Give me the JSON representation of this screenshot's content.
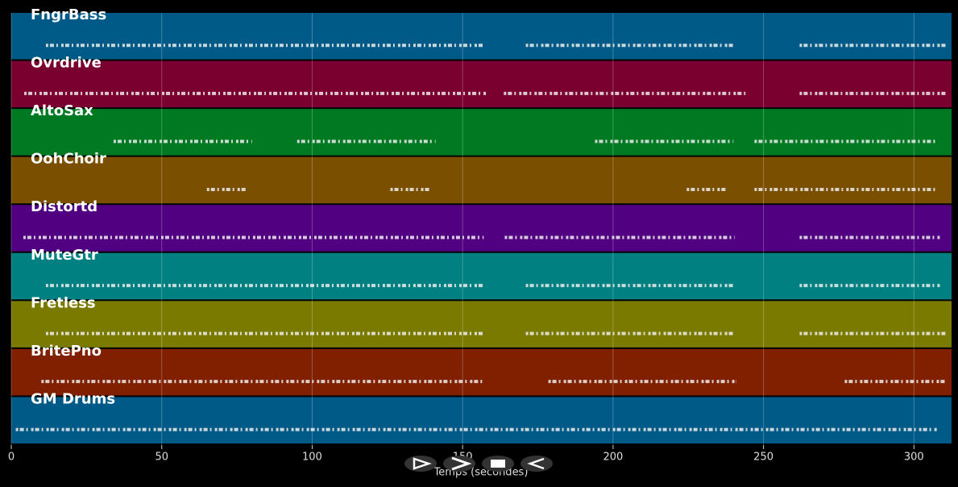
{
  "chart_data": {
    "type": "pianoroll",
    "x_label": "Temps (secondes)",
    "xlim": [
      0,
      312.5
    ],
    "xticks": [
      0,
      50,
      100,
      150,
      200,
      250,
      300
    ],
    "grid": true,
    "tracks": [
      {
        "name": "FngrBass",
        "color": "#005a87",
        "segments": [
          [
            11.5,
            157
          ],
          [
            171,
            240.5
          ],
          [
            262,
            310.5
          ]
        ]
      },
      {
        "name": "Ovrdrive",
        "color": "#7a0030",
        "segments": [
          [
            4.3,
            158
          ],
          [
            163.7,
            244
          ],
          [
            262,
            310.5
          ]
        ]
      },
      {
        "name": "AltoSax",
        "color": "#007a22",
        "segments": [
          [
            34,
            80
          ],
          [
            95,
            141
          ],
          [
            194,
            240
          ],
          [
            247,
            307
          ]
        ]
      },
      {
        "name": "OohChoir",
        "color": "#7a5000",
        "segments": [
          [
            65,
            78
          ],
          [
            126,
            139
          ],
          [
            224.5,
            238
          ],
          [
            247,
            307
          ]
        ]
      },
      {
        "name": "Distortd",
        "color": "#500080",
        "segments": [
          [
            4,
            157
          ],
          [
            164,
            240.5
          ],
          [
            262,
            309
          ]
        ]
      },
      {
        "name": "MuteGtr",
        "color": "#008080",
        "segments": [
          [
            11.5,
            157
          ],
          [
            171,
            240.5
          ],
          [
            262,
            309
          ]
        ]
      },
      {
        "name": "Fretless",
        "color": "#7a7a00",
        "segments": [
          [
            11.5,
            157
          ],
          [
            171,
            240.5
          ],
          [
            262,
            310.5
          ]
        ]
      },
      {
        "name": "BritePno",
        "color": "#802000",
        "segments": [
          [
            10,
            157
          ],
          [
            178.5,
            241
          ],
          [
            277,
            310.5
          ]
        ]
      },
      {
        "name": "GM Drums",
        "color": "#005a87",
        "segments": [
          [
            1.5,
            308
          ]
        ]
      }
    ]
  }
}
